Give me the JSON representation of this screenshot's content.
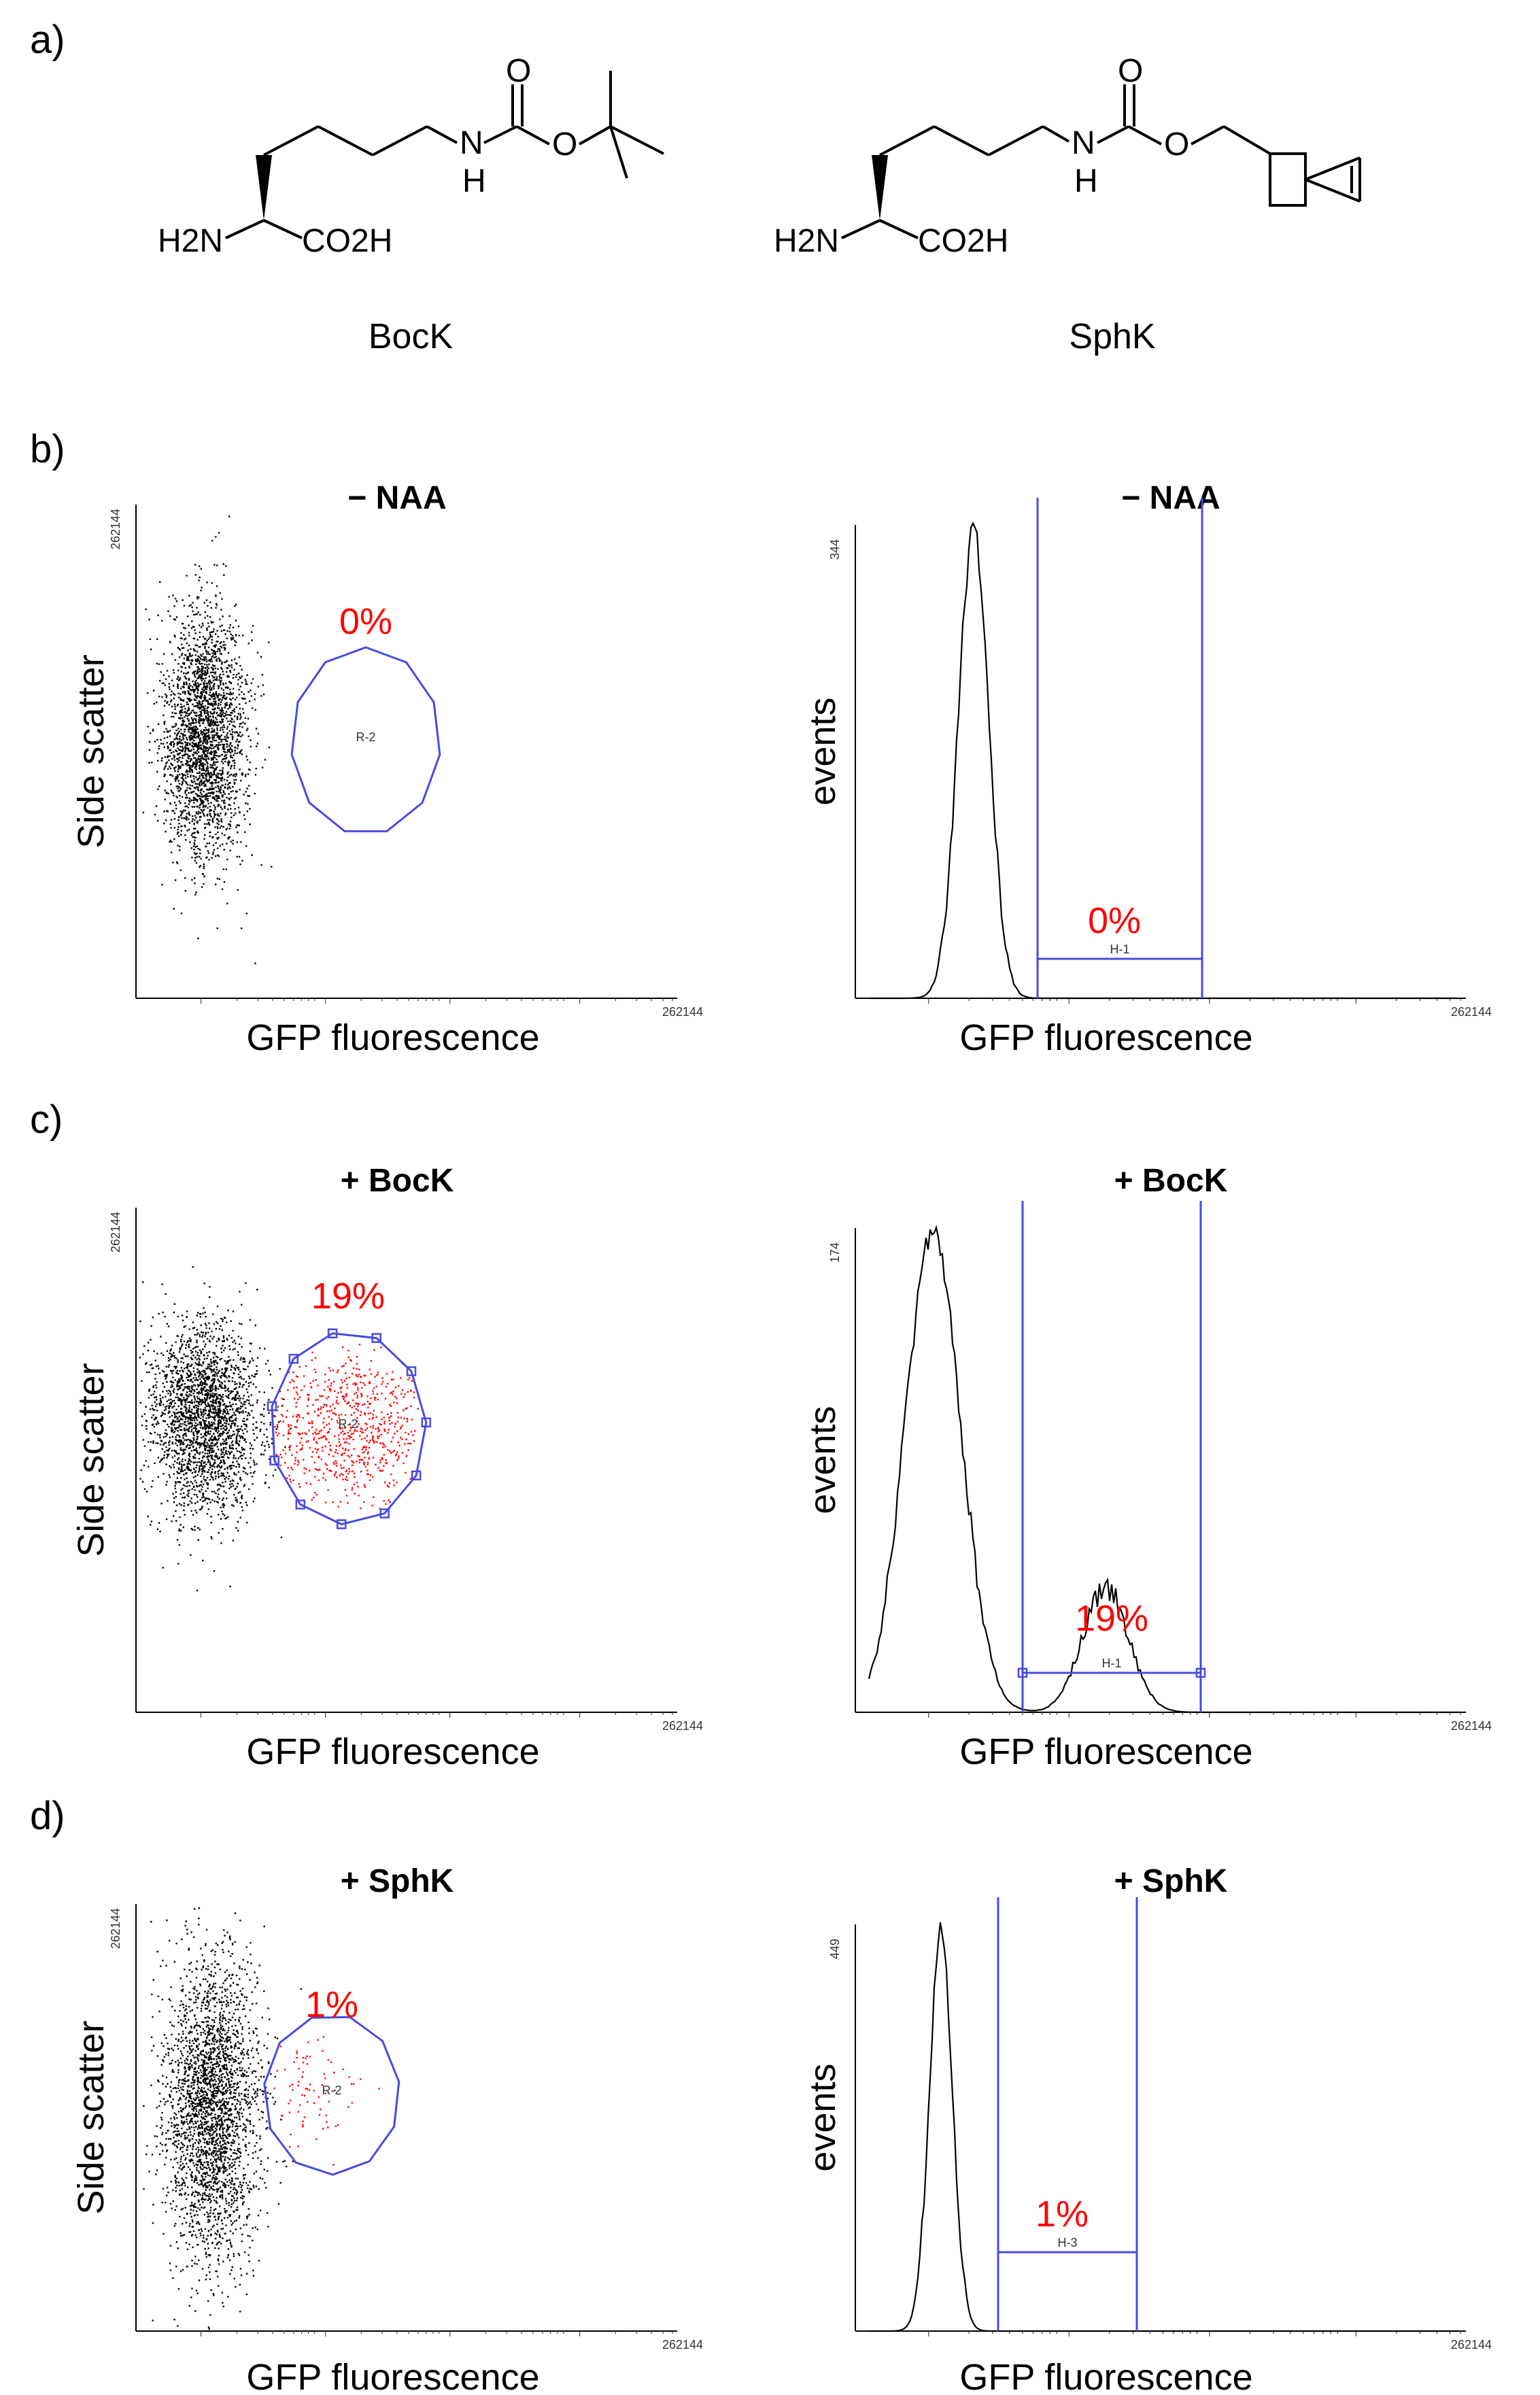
{
  "panel_labels": [
    "a)",
    "b)",
    "c)",
    "d)"
  ],
  "colors": {
    "gate": "#4a4ae0",
    "positive_events": "#ff0000",
    "events": "#000000",
    "percent_text": "#ff0000"
  },
  "molecules": [
    {
      "name": "BocK",
      "amine": "H2N",
      "acid": "CO2H",
      "carbonyl_o": "O",
      "ester_o": "O",
      "nh": "N",
      "nh_h": "H"
    },
    {
      "name": "SphK",
      "amine": "H2N",
      "acid": "CO2H",
      "carbonyl_o": "O",
      "ester_o": "O",
      "nh": "N",
      "nh_h": "H"
    }
  ],
  "rows": [
    {
      "condition": "− NAA",
      "scatter": {
        "ylabel": "Side scatter",
        "xlabel": "GFP fluorescence",
        "x_max": "262144",
        "y_max": "262144",
        "gate": "R-2",
        "percent": "0%",
        "gated_fraction": 0.0
      },
      "histogram": {
        "ylabel": "events",
        "xlabel": "GFP fluorescence",
        "x_max": "262144",
        "y_max": "344",
        "gate": "H-1",
        "percent": "0%"
      }
    },
    {
      "condition": "+ BocK",
      "scatter": {
        "ylabel": "Side scatter",
        "xlabel": "GFP fluorescence",
        "x_max": "262144",
        "y_max": "262144",
        "gate": "R-2",
        "percent": "19%",
        "gated_fraction": 0.19
      },
      "histogram": {
        "ylabel": "events",
        "xlabel": "GFP fluorescence",
        "x_max": "262144",
        "y_max": "174",
        "gate": "H-1",
        "percent": "19%"
      }
    },
    {
      "condition": "+ SphK",
      "scatter": {
        "ylabel": "Side scatter",
        "xlabel": "GFP fluorescence",
        "x_max": "262144",
        "y_max": "262144",
        "gate": "R-2",
        "percent": "1%",
        "gated_fraction": 0.01
      },
      "histogram": {
        "ylabel": "events",
        "xlabel": "GFP fluorescence",
        "x_max": "262144",
        "y_max": "449",
        "gate": "H-3",
        "percent": "1%"
      }
    }
  ]
}
